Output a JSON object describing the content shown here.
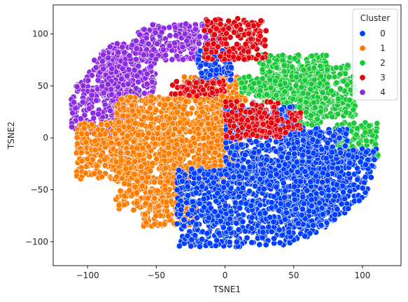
{
  "chart_data": {
    "type": "scatter",
    "title": "",
    "xlabel": "TSNE1",
    "ylabel": "TSNE2",
    "xlim": [
      -125,
      128
    ],
    "ylim": [
      -123,
      128
    ],
    "x_ticks": [
      -100,
      -50,
      0,
      50,
      100
    ],
    "y_ticks": [
      -100,
      -50,
      0,
      50,
      100
    ],
    "grid": false,
    "legend": {
      "title": "Cluster",
      "position": "top-right",
      "entries": [
        "0",
        "1",
        "2",
        "3",
        "4"
      ]
    },
    "series": [
      {
        "name": "0",
        "color": "#023eff",
        "regions": [
          {
            "x": [
              -20,
              5
            ],
            "y": [
              55,
              85
            ]
          },
          {
            "x": [
              -35,
              25
            ],
            "y": [
              -105,
              -30
            ]
          },
          {
            "x": [
              0,
              50
            ],
            "y": [
              -40,
              30
            ]
          },
          {
            "x": [
              25,
              80
            ],
            "y": [
              -105,
              -20
            ]
          },
          {
            "x": [
              50,
              110
            ],
            "y": [
              -85,
              -10
            ]
          },
          {
            "x": [
              40,
              90
            ],
            "y": [
              -20,
              10
            ]
          }
        ]
      },
      {
        "name": "1",
        "color": "#ff7c00",
        "regions": [
          {
            "x": [
              -108,
              -60
            ],
            "y": [
              -40,
              15
            ]
          },
          {
            "x": [
              -80,
              -30
            ],
            "y": [
              -70,
              40
            ]
          },
          {
            "x": [
              -45,
              0
            ],
            "y": [
              -50,
              40
            ]
          },
          {
            "x": [
              -60,
              -20
            ],
            "y": [
              -85,
              -60
            ]
          },
          {
            "x": [
              -20,
              10
            ],
            "y": [
              -30,
              35
            ]
          },
          {
            "x": [
              -30,
              15
            ],
            "y": [
              35,
              60
            ]
          }
        ]
      },
      {
        "name": "2",
        "color": "#1ac938",
        "regions": [
          {
            "x": [
              25,
              75
            ],
            "y": [
              35,
              80
            ]
          },
          {
            "x": [
              55,
              95
            ],
            "y": [
              20,
              70
            ]
          },
          {
            "x": [
              40,
              70
            ],
            "y": [
              0,
              40
            ]
          },
          {
            "x": [
              80,
              112
            ],
            "y": [
              -20,
              15
            ]
          },
          {
            "x": [
              10,
              45
            ],
            "y": [
              40,
              60
            ]
          }
        ]
      },
      {
        "name": "3",
        "color": "#e8000b",
        "regions": [
          {
            "x": [
              -15,
              30
            ],
            "y": [
              75,
              115
            ]
          },
          {
            "x": [
              -40,
              0
            ],
            "y": [
              40,
              55
            ]
          },
          {
            "x": [
              0,
              40
            ],
            "y": [
              0,
              35
            ]
          },
          {
            "x": [
              25,
              55
            ],
            "y": [
              5,
              25
            ]
          }
        ]
      },
      {
        "name": "4",
        "color": "#8b2be2",
        "regions": [
          {
            "x": [
              -112,
              -70
            ],
            "y": [
              5,
              90
            ]
          },
          {
            "x": [
              -90,
              -50
            ],
            "y": [
              40,
              95
            ]
          },
          {
            "x": [
              -65,
              -20
            ],
            "y": [
              75,
              110
            ]
          },
          {
            "x": [
              -30,
              0
            ],
            "y": [
              90,
              110
            ]
          }
        ]
      }
    ]
  }
}
